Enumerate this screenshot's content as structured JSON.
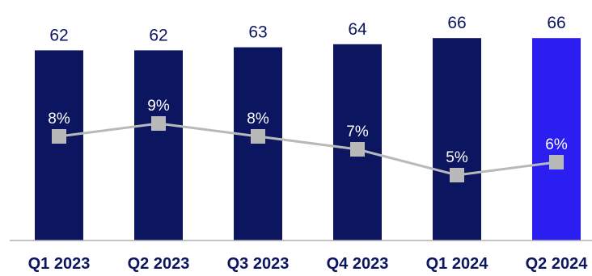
{
  "chart_data": {
    "type": "bar",
    "title": "",
    "xlabel": "",
    "ylabel": "",
    "categories": [
      "Q1 2023",
      "Q2 2023",
      "Q3 2023",
      "Q4 2023",
      "Q1 2024",
      "Q2 2024"
    ],
    "series": [
      {
        "type": "bar",
        "values": [
          62,
          62,
          63,
          64,
          66,
          66
        ],
        "labels": [
          "62",
          "62",
          "63",
          "64",
          "66",
          "66"
        ],
        "colors": [
          "#0b1560",
          "#0b1560",
          "#0b1560",
          "#0b1560",
          "#0b1560",
          "#2a1ef0"
        ]
      },
      {
        "type": "line",
        "values": [
          8,
          9,
          8,
          7,
          5,
          6
        ],
        "labels": [
          "8%",
          "9%",
          "8%",
          "7%",
          "5%",
          "6%"
        ],
        "color": "#b9b9b9"
      }
    ],
    "grid": false,
    "legend": "none"
  }
}
